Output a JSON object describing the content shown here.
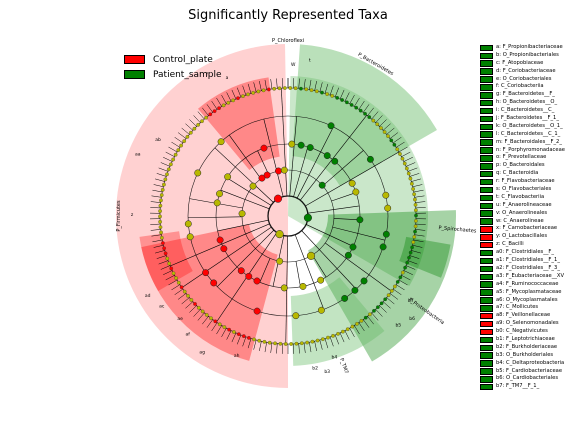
{
  "title": "Significantly Represented Taxa",
  "colors": {
    "control": "#ff0000",
    "patient": "#008000",
    "neutral": "#b8b800",
    "control_shade": "#ff9999",
    "patient_shade": "#66bb66"
  },
  "legend": [
    {
      "label": "Control_plate",
      "color": "#ff0000"
    },
    {
      "label": "Patient_sample",
      "color": "#008000"
    }
  ],
  "clade_labels": [
    {
      "text": "P_Chloroflexi",
      "group": "patient"
    },
    {
      "text": "P_Bacteroidetes",
      "group": "patient"
    },
    {
      "text": "P_Firmicutes",
      "group": "control"
    },
    {
      "text": "P_Spirochaetes",
      "group": "patient"
    },
    {
      "text": "P_Proteobacteria",
      "group": "patient"
    },
    {
      "text": "P_TM7",
      "group": "patient"
    }
  ],
  "sector_letters": [
    "W",
    "t",
    "f",
    "a",
    "z",
    "aa",
    "ab",
    "ac",
    "ad",
    "ae",
    "af",
    "ag",
    "ah",
    "b2",
    "b3",
    "b4",
    "b5",
    "b6",
    "b7"
  ],
  "taxa": [
    {
      "key": "a",
      "label": "a: F_Propionibacteriaceae",
      "group": "patient"
    },
    {
      "key": "b",
      "label": "b: O_Propionibacteriales",
      "group": "patient"
    },
    {
      "key": "c",
      "label": "c: F_Atopobiaceae",
      "group": "patient"
    },
    {
      "key": "d",
      "label": "d: F_Coriobacteriaceae",
      "group": "patient"
    },
    {
      "key": "e",
      "label": "e: O_Coriobacteriales",
      "group": "patient"
    },
    {
      "key": "f",
      "label": "f: C_Coriobacteriia",
      "group": "patient"
    },
    {
      "key": "g",
      "label": "g: F_Bacteroidetes__F_",
      "group": "patient"
    },
    {
      "key": "h",
      "label": "h: O_Bacteroidetes__O_",
      "group": "patient"
    },
    {
      "key": "i",
      "label": "i: C_Bacteroidetes__C_",
      "group": "patient"
    },
    {
      "key": "j",
      "label": "j: F_Bacteroidetes__F_1_",
      "group": "patient"
    },
    {
      "key": "k",
      "label": "k: O_Bacteroidetes__O_1_",
      "group": "patient"
    },
    {
      "key": "l",
      "label": "l: C_Bacteroidetes__C_1_",
      "group": "patient"
    },
    {
      "key": "m",
      "label": "m: F_Bacteroidales__F_2_",
      "group": "patient"
    },
    {
      "key": "n",
      "label": "n: F_Porphyromonadaceae",
      "group": "patient"
    },
    {
      "key": "o",
      "label": "o: F_Prevotellaceae",
      "group": "patient"
    },
    {
      "key": "p",
      "label": "p: O_Bacteroidales",
      "group": "patient"
    },
    {
      "key": "q",
      "label": "q: C_Bacteroidia",
      "group": "patient"
    },
    {
      "key": "r",
      "label": "r: F_Flavobacteriaceae",
      "group": "patient"
    },
    {
      "key": "s",
      "label": "s: O_Flavobacteriales",
      "group": "patient"
    },
    {
      "key": "t",
      "label": "t: C_Flavobacteriia",
      "group": "patient"
    },
    {
      "key": "u",
      "label": "u: F_Anaerolineaceae",
      "group": "patient"
    },
    {
      "key": "v",
      "label": "v: O_Anaerolineales",
      "group": "patient"
    },
    {
      "key": "w",
      "label": "w: C_Anaerolineae",
      "group": "patient"
    },
    {
      "key": "x",
      "label": "x: F_Carnobacteriaceae",
      "group": "control"
    },
    {
      "key": "y",
      "label": "y: O_Lactobacillales",
      "group": "control"
    },
    {
      "key": "z",
      "label": "z: C_Bacilli",
      "group": "control"
    },
    {
      "key": "a0",
      "label": "a0: F_Clostridiales__F_",
      "group": "patient"
    },
    {
      "key": "a1",
      "label": "a1: F_Clostridiales__F_1_",
      "group": "patient"
    },
    {
      "key": "a2",
      "label": "a2: F_Clostridiales__F_3_",
      "group": "patient"
    },
    {
      "key": "a3",
      "label": "a3: F_Eubacteriaceae__XV",
      "group": "patient"
    },
    {
      "key": "a4",
      "label": "a4: F_Ruminococcaceae",
      "group": "patient"
    },
    {
      "key": "a5",
      "label": "a5: F_Mycoplasmataceae",
      "group": "patient"
    },
    {
      "key": "a6",
      "label": "a6: O_Mycoplasmatales",
      "group": "patient"
    },
    {
      "key": "a7",
      "label": "a7: C_Mollicutes",
      "group": "patient"
    },
    {
      "key": "a8",
      "label": "a8: F_Veillonellaceae",
      "group": "control"
    },
    {
      "key": "a9",
      "label": "a9: O_Selenomonadales",
      "group": "control"
    },
    {
      "key": "b0",
      "label": "b0: C_Negativicutes",
      "group": "control"
    },
    {
      "key": "b1",
      "label": "b1: F_Leptotrichiaceae",
      "group": "patient"
    },
    {
      "key": "b2",
      "label": "b2: F_Burkholderiaceae",
      "group": "patient"
    },
    {
      "key": "b3",
      "label": "b3: O_Burkholderiales",
      "group": "patient"
    },
    {
      "key": "b4",
      "label": "b4: C_Deltaproteobacteria",
      "group": "patient"
    },
    {
      "key": "b5",
      "label": "b5: F_Cardiobacteriaceae",
      "group": "patient"
    },
    {
      "key": "b6",
      "label": "b6: O_Cardiobacteriales",
      "group": "patient"
    },
    {
      "key": "b7",
      "label": "b7: F_TM7__F_1_",
      "group": "patient"
    }
  ]
}
